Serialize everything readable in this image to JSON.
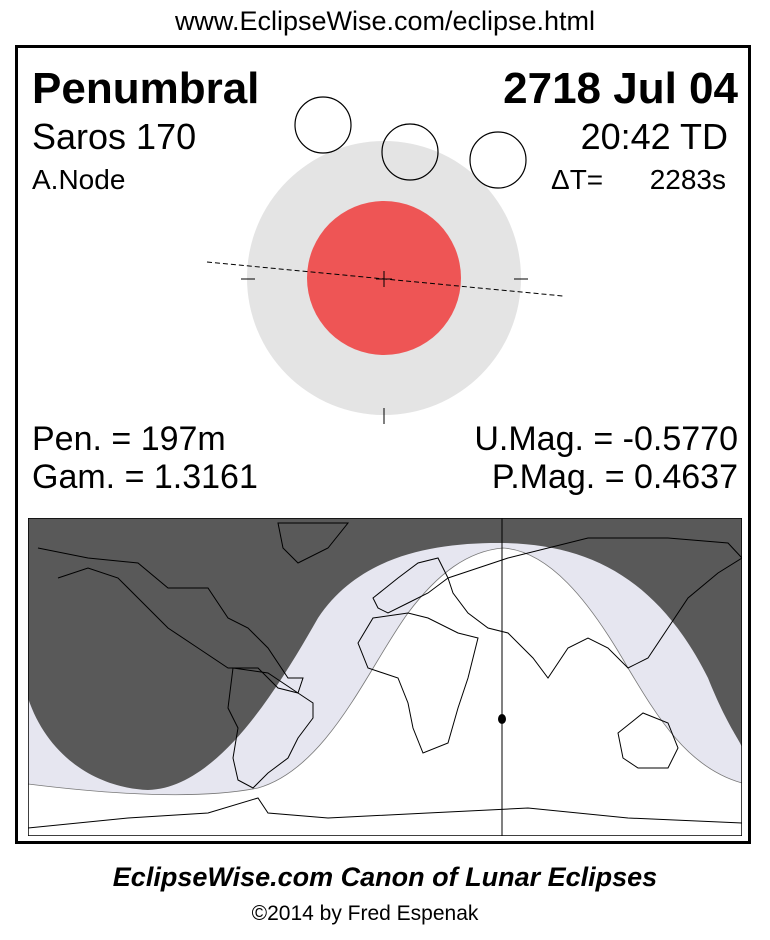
{
  "url": "www.EclipseWise.com/eclipse.html",
  "eclipse": {
    "type": "Penumbral",
    "date": "2718 Jul 04",
    "saros": "Saros 170",
    "time": "20:42 TD",
    "node": "A.Node",
    "delta_t_label": "ΔT=",
    "delta_t_value": "2283s",
    "pen_duration": "Pen. = 197m",
    "gamma": "Gam. = 1.3161",
    "umbral_mag": "U.Mag. = -0.5770",
    "penumbral_mag": "P.Mag. = 0.4637"
  },
  "colors": {
    "umbra": "#ee5555",
    "penumbra": "#e4e4e4",
    "map_night": "#595959",
    "map_penumbral": "#e6e6f0"
  },
  "footer": {
    "title": "EclipseWise.com Canon of Lunar Eclipses",
    "copyright": "©2014 by Fred Espenak"
  }
}
